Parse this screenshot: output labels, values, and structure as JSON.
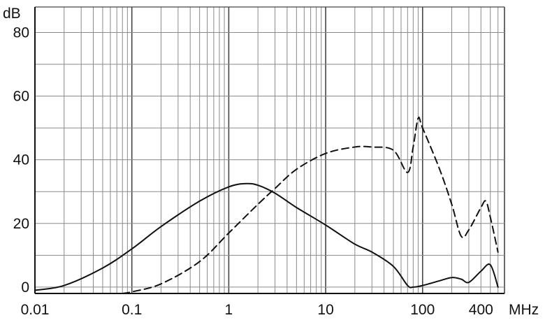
{
  "chart_data": {
    "type": "line",
    "title": "",
    "xlabel": "",
    "ylabel": "",
    "x_unit": "MHz",
    "y_unit": "dB",
    "x_scale": "log",
    "xlim": [
      0.01,
      700
    ],
    "ylim": [
      -2,
      88
    ],
    "grid": true,
    "legend": "none",
    "x_ticks": [
      {
        "value": 0.01,
        "label": "0.01"
      },
      {
        "value": 0.1,
        "label": "0.1"
      },
      {
        "value": 1,
        "label": "1"
      },
      {
        "value": 10,
        "label": "10"
      },
      {
        "value": 100,
        "label": "100"
      },
      {
        "value": 400,
        "label": "400"
      }
    ],
    "y_ticks": [
      {
        "value": 0,
        "label": "0"
      },
      {
        "value": 20,
        "label": "20"
      },
      {
        "value": 40,
        "label": "40"
      },
      {
        "value": 60,
        "label": "60"
      },
      {
        "value": 80,
        "label": "80"
      }
    ],
    "series": [
      {
        "style": "solid",
        "color": "#111111",
        "x": [
          0.01,
          0.02,
          0.05,
          0.1,
          0.2,
          0.5,
          1,
          1.5,
          2,
          3,
          5,
          10,
          20,
          30,
          50,
          70,
          80,
          100,
          150,
          200,
          250,
          300,
          400,
          500,
          600
        ],
        "y": [
          -1,
          0.5,
          6,
          12,
          19,
          27,
          31.5,
          32.5,
          32,
          29.5,
          25,
          19.5,
          13.5,
          11,
          6.5,
          0.5,
          0,
          0.5,
          2,
          3,
          2.5,
          1.5,
          5,
          7,
          0
        ]
      },
      {
        "style": "dashed",
        "color": "#111111",
        "x": [
          0.08,
          0.1,
          0.2,
          0.5,
          1,
          2,
          3,
          5,
          10,
          20,
          30,
          50,
          70,
          80,
          90,
          100,
          150,
          200,
          250,
          300,
          400,
          450,
          500,
          600
        ],
        "y": [
          -2,
          -1.5,
          1,
          8,
          17,
          26,
          31,
          37,
          42,
          44,
          44,
          43,
          36,
          44,
          53,
          50,
          37,
          26,
          16,
          18,
          25,
          27,
          22,
          11
        ]
      }
    ]
  }
}
